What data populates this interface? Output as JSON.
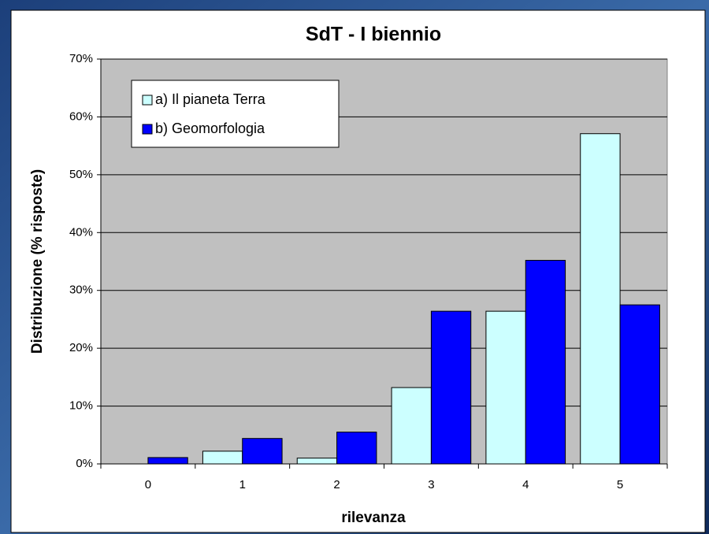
{
  "chart_data": {
    "type": "bar",
    "title": "SdT - I biennio",
    "x_label": "rilevanza",
    "y_label": "Distribuzione (% risposte)",
    "categories": [
      "0",
      "1",
      "2",
      "3",
      "4",
      "5"
    ],
    "series": [
      {
        "name": "a) Il pianeta Terra",
        "color": "#ccffff",
        "values": [
          0,
          2.2,
          1.0,
          13.2,
          26.4,
          57.1
        ]
      },
      {
        "name": "b) Geomorfologia",
        "color": "#0000ff",
        "values": [
          1.1,
          4.4,
          5.5,
          26.4,
          35.2,
          27.5
        ]
      }
    ],
    "ylim": [
      0,
      70
    ],
    "yticks": [
      {
        "value": 0,
        "label": "0%"
      },
      {
        "value": 10,
        "label": "10%"
      },
      {
        "value": 20,
        "label": "20%"
      },
      {
        "value": 30,
        "label": "30%"
      },
      {
        "value": 40,
        "label": "40%"
      },
      {
        "value": 50,
        "label": "50%"
      },
      {
        "value": 60,
        "label": "60%"
      },
      {
        "value": 70,
        "label": "70%"
      }
    ],
    "grid": true,
    "legend": "upper left"
  }
}
